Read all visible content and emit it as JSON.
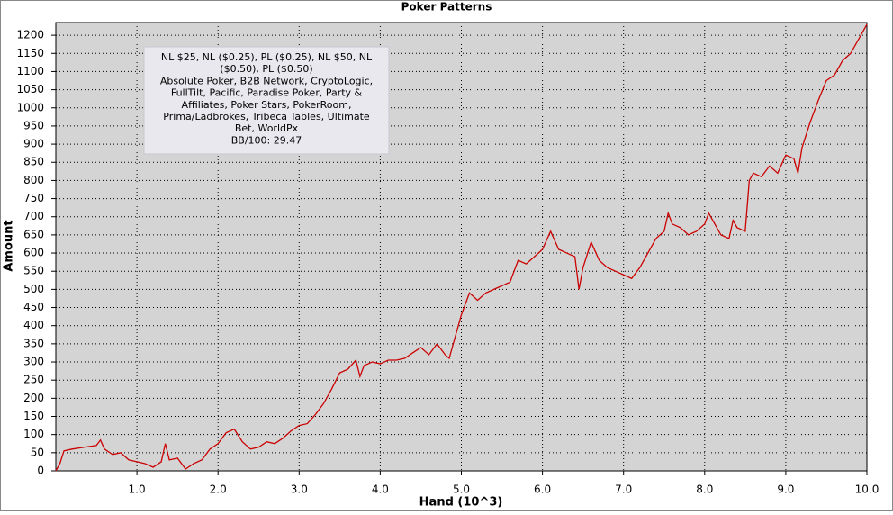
{
  "chart_data": {
    "type": "line",
    "title": "Poker Patterns",
    "x_label": "Hand (10^3)",
    "y_label": "Amount",
    "annotation": [
      "NL $25, NL ($0.25), PL ($0.25), NL $50, NL",
      "($0.50), PL ($0.50)",
      "Absolute Poker, B2B Network, CryptoLogic,",
      "FullTilt, Pacific, Paradise Poker, Party &",
      "Affiliates, Poker Stars, PokerRoom,",
      "Prima/Ladbrokes, Tribeca Tables, Ultimate",
      "Bet, WorldPx",
      "BB/100: 29.47"
    ],
    "xlim": [
      0,
      10
    ],
    "ylim": [
      0,
      1235
    ],
    "xticks": [
      {
        "value": 1,
        "label": "1.0"
      },
      {
        "value": 2,
        "label": "2.0"
      },
      {
        "value": 3,
        "label": "3.0"
      },
      {
        "value": 4,
        "label": "4.0"
      },
      {
        "value": 5,
        "label": "5.0"
      },
      {
        "value": 6,
        "label": "6.0"
      },
      {
        "value": 7,
        "label": "7.0"
      },
      {
        "value": 8,
        "label": "8.0"
      },
      {
        "value": 9,
        "label": "9.0"
      },
      {
        "value": 10,
        "label": "10.0"
      }
    ],
    "yticks": [
      0,
      50,
      100,
      150,
      200,
      250,
      300,
      350,
      400,
      450,
      500,
      550,
      600,
      650,
      700,
      750,
      800,
      850,
      900,
      950,
      1000,
      1050,
      1100,
      1150,
      1200
    ],
    "grid": true,
    "color": "#cc0000",
    "x": [
      0,
      0.05,
      0.1,
      0.2,
      0.35,
      0.5,
      0.55,
      0.6,
      0.7,
      0.8,
      0.9,
      1.0,
      1.1,
      1.2,
      1.3,
      1.35,
      1.4,
      1.5,
      1.6,
      1.7,
      1.8,
      1.9,
      2.0,
      2.1,
      2.2,
      2.3,
      2.4,
      2.5,
      2.6,
      2.7,
      2.8,
      2.9,
      3.0,
      3.1,
      3.2,
      3.3,
      3.4,
      3.5,
      3.6,
      3.7,
      3.75,
      3.8,
      3.9,
      4.0,
      4.1,
      4.2,
      4.3,
      4.4,
      4.5,
      4.6,
      4.7,
      4.8,
      4.85,
      4.9,
      5.0,
      5.1,
      5.2,
      5.3,
      5.4,
      5.5,
      5.6,
      5.7,
      5.8,
      5.9,
      6.0,
      6.1,
      6.2,
      6.3,
      6.4,
      6.45,
      6.5,
      6.6,
      6.7,
      6.8,
      6.9,
      7.0,
      7.1,
      7.2,
      7.3,
      7.4,
      7.5,
      7.55,
      7.6,
      7.7,
      7.8,
      7.9,
      8.0,
      8.05,
      8.1,
      8.2,
      8.3,
      8.35,
      8.4,
      8.5,
      8.55,
      8.6,
      8.7,
      8.8,
      8.9,
      9.0,
      9.1,
      9.15,
      9.2,
      9.3,
      9.4,
      9.5,
      9.6,
      9.7,
      9.8,
      9.9,
      10.0
    ],
    "values": [
      0,
      20,
      55,
      60,
      65,
      70,
      85,
      60,
      45,
      50,
      30,
      25,
      20,
      10,
      25,
      75,
      30,
      35,
      5,
      20,
      30,
      60,
      75,
      105,
      115,
      80,
      60,
      65,
      80,
      75,
      90,
      110,
      125,
      130,
      155,
      185,
      225,
      270,
      280,
      305,
      260,
      290,
      300,
      295,
      305,
      305,
      310,
      325,
      340,
      320,
      350,
      320,
      310,
      350,
      430,
      490,
      470,
      490,
      500,
      510,
      520,
      580,
      570,
      590,
      610,
      660,
      610,
      600,
      590,
      500,
      560,
      630,
      580,
      560,
      550,
      540,
      530,
      560,
      600,
      640,
      660,
      710,
      680,
      670,
      650,
      660,
      680,
      710,
      690,
      650,
      640,
      690,
      670,
      660,
      800,
      820,
      810,
      840,
      820,
      870,
      860,
      820,
      890,
      960,
      1020,
      1075,
      1090,
      1130,
      1150,
      1190,
      1230
    ]
  }
}
